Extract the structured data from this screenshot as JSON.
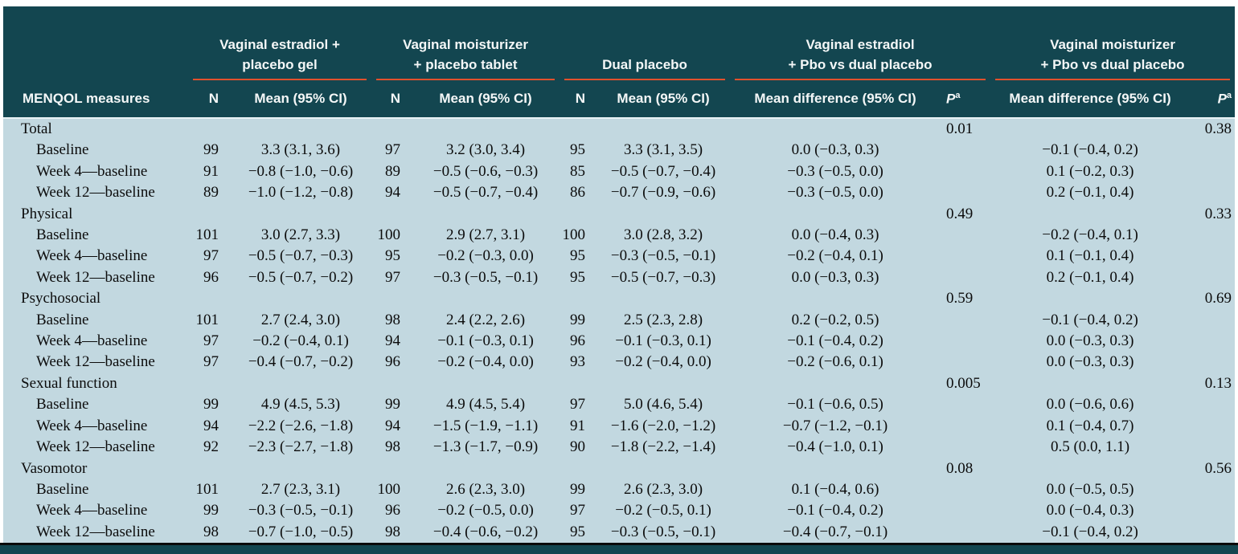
{
  "colors": {
    "header_bg": "#134650",
    "header_text": "#f4f7f7",
    "body_bg": "#c2d8e0",
    "body_text": "#0c0c0c",
    "rule": "#e2512d",
    "divider": "#e8f2f5",
    "bottom_line": "#0a0a0a"
  },
  "header": {
    "measure_col": "MENQOL measures",
    "n": "N",
    "mean_ci": "Mean (95% CI)",
    "mean_diff_ci": "Mean difference (95% CI)",
    "p_italic": "P",
    "p_sup": "a",
    "groups": [
      {
        "line1": "Vaginal estradiol +",
        "line2": "placebo gel"
      },
      {
        "line1": "Vaginal moisturizer",
        "line2": "+ placebo tablet"
      },
      {
        "line1": "",
        "line2": "Dual placebo"
      },
      {
        "line1": "Vaginal estradiol",
        "line2": "+ Pbo vs dual placebo"
      },
      {
        "line1": "Vaginal moisturizer",
        "line2": "+ Pbo vs dual placebo"
      }
    ]
  },
  "table": {
    "sections": [
      {
        "label": "Total",
        "p1": "0.01",
        "p2": "0.38",
        "rows": [
          {
            "label": "Baseline",
            "n1": "99",
            "m1": "3.3 (3.1, 3.6)",
            "n2": "97",
            "m2": "3.2 (3.0, 3.4)",
            "n3": "95",
            "m3": "3.3 (3.1, 3.5)",
            "d1": "0.0 (−0.3, 0.3)",
            "d2": "−0.1 (−0.4, 0.2)"
          },
          {
            "label": "Week 4—baseline",
            "n1": "91",
            "m1": "−0.8 (−1.0, −0.6)",
            "n2": "89",
            "m2": "−0.5 (−0.6, −0.3)",
            "n3": "85",
            "m3": "−0.5 (−0.7, −0.4)",
            "d1": "−0.3 (−0.5, 0.0)",
            "d2": "0.1 (−0.2, 0.3)"
          },
          {
            "label": "Week 12—baseline",
            "n1": "89",
            "m1": "−1.0 (−1.2, −0.8)",
            "n2": "94",
            "m2": "−0.5 (−0.7, −0.4)",
            "n3": "86",
            "m3": "−0.7 (−0.9, −0.6)",
            "d1": "−0.3 (−0.5, 0.0)",
            "d2": "0.2 (−0.1, 0.4)"
          }
        ]
      },
      {
        "label": "Physical",
        "p1": "0.49",
        "p2": "0.33",
        "rows": [
          {
            "label": "Baseline",
            "n1": "101",
            "m1": "3.0 (2.7, 3.3)",
            "n2": "100",
            "m2": "2.9 (2.7, 3.1)",
            "n3": "100",
            "m3": "3.0 (2.8, 3.2)",
            "d1": "0.0 (−0.4, 0.3)",
            "d2": "−0.2 (−0.4, 0.1)"
          },
          {
            "label": "Week 4—baseline",
            "n1": "97",
            "m1": "−0.5 (−0.7, −0.3)",
            "n2": "95",
            "m2": "−0.2 (−0.3, 0.0)",
            "n3": "95",
            "m3": "−0.3 (−0.5, −0.1)",
            "d1": "−0.2 (−0.4, 0.1)",
            "d2": "0.1 (−0.1, 0.4)"
          },
          {
            "label": "Week 12—baseline",
            "n1": "96",
            "m1": "−0.5 (−0.7, −0.2)",
            "n2": "97",
            "m2": "−0.3 (−0.5, −0.1)",
            "n3": "95",
            "m3": "−0.5 (−0.7, −0.3)",
            "d1": "0.0 (−0.3, 0.3)",
            "d2": "0.2 (−0.1, 0.4)"
          }
        ]
      },
      {
        "label": "Psychosocial",
        "p1": "0.59",
        "p2": "0.69",
        "rows": [
          {
            "label": "Baseline",
            "n1": "101",
            "m1": "2.7 (2.4, 3.0)",
            "n2": "98",
            "m2": "2.4 (2.2, 2.6)",
            "n3": "99",
            "m3": "2.5 (2.3, 2.8)",
            "d1": "0.2 (−0.2, 0.5)",
            "d2": "−0.1 (−0.4, 0.2)"
          },
          {
            "label": "Week 4—baseline",
            "n1": "97",
            "m1": "−0.2 (−0.4, 0.1)",
            "n2": "94",
            "m2": "−0.1 (−0.3, 0.1)",
            "n3": "96",
            "m3": "−0.1 (−0.3, 0.1)",
            "d1": "−0.1 (−0.4, 0.2)",
            "d2": "0.0 (−0.3, 0.3)"
          },
          {
            "label": "Week 12—baseline",
            "n1": "97",
            "m1": "−0.4 (−0.7, −0.2)",
            "n2": "96",
            "m2": "−0.2 (−0.4, 0.0)",
            "n3": "93",
            "m3": "−0.2 (−0.4, 0.0)",
            "d1": "−0.2 (−0.6, 0.1)",
            "d2": "0.0 (−0.3, 0.3)"
          }
        ]
      },
      {
        "label": "Sexual function",
        "p1": "0.005",
        "p2": "0.13",
        "rows": [
          {
            "label": "Baseline",
            "n1": "99",
            "m1": "4.9 (4.5, 5.3)",
            "n2": "99",
            "m2": "4.9 (4.5, 5.4)",
            "n3": "97",
            "m3": "5.0 (4.6, 5.4)",
            "d1": "−0.1 (−0.6, 0.5)",
            "d2": "0.0 (−0.6, 0.6)"
          },
          {
            "label": "Week 4—baseline",
            "n1": "94",
            "m1": "−2.2 (−2.6, −1.8)",
            "n2": "94",
            "m2": "−1.5 (−1.9, −1.1)",
            "n3": "91",
            "m3": "−1.6 (−2.0, −1.2)",
            "d1": "−0.7 (−1.2, −0.1)",
            "d2": "0.1 (−0.4, 0.7)"
          },
          {
            "label": "Week 12—baseline",
            "n1": "92",
            "m1": "−2.3 (−2.7, −1.8)",
            "n2": "98",
            "m2": "−1.3 (−1.7, −0.9)",
            "n3": "90",
            "m3": "−1.8 (−2.2, −1.4)",
            "d1": "−0.4 (−1.0, 0.1)",
            "d2": "0.5 (0.0, 1.1)"
          }
        ]
      },
      {
        "label": "Vasomotor",
        "p1": "0.08",
        "p2": "0.56",
        "rows": [
          {
            "label": "Baseline",
            "n1": "101",
            "m1": "2.7 (2.3, 3.1)",
            "n2": "100",
            "m2": "2.6 (2.3, 3.0)",
            "n3": "99",
            "m3": "2.6 (2.3, 3.0)",
            "d1": "0.1 (−0.4, 0.6)",
            "d2": "0.0 (−0.5, 0.5)"
          },
          {
            "label": "Week 4—baseline",
            "n1": "99",
            "m1": "−0.3 (−0.5, −0.1)",
            "n2": "96",
            "m2": "−0.2 (−0.5, 0.0)",
            "n3": "97",
            "m3": "−0.2 (−0.5, 0.1)",
            "d1": "−0.1 (−0.4, 0.2)",
            "d2": "0.0 (−0.4, 0.3)"
          },
          {
            "label": "Week 12—baseline",
            "n1": "98",
            "m1": "−0.7 (−1.0, −0.5)",
            "n2": "98",
            "m2": "−0.4 (−0.6, −0.2)",
            "n3": "95",
            "m3": "−0.3 (−0.5, −0.1)",
            "d1": "−0.4 (−0.7, −0.1)",
            "d2": "−0.1 (−0.4, 0.2)"
          }
        ]
      }
    ]
  }
}
